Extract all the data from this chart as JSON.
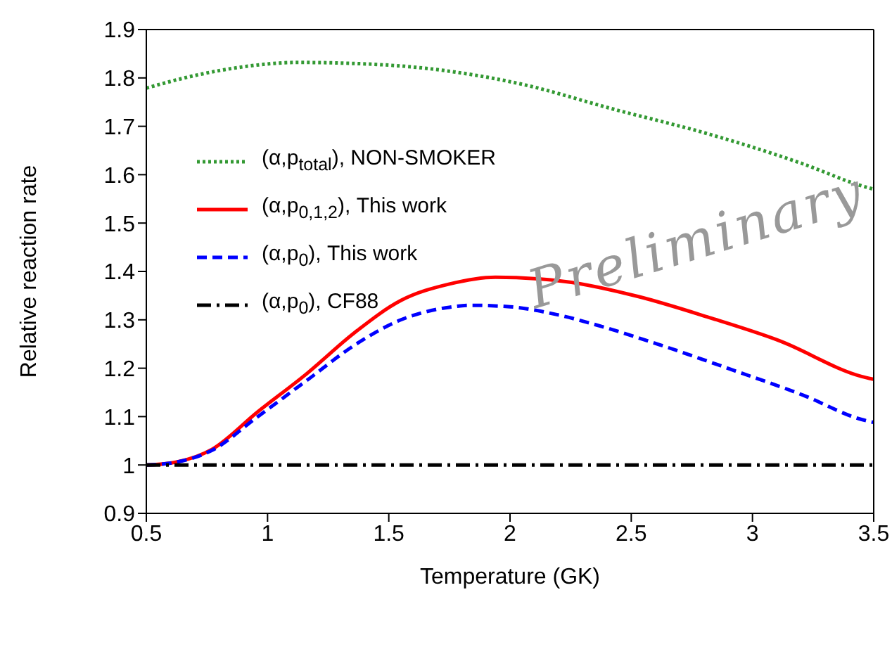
{
  "chart_data": {
    "type": "line",
    "xlabel": "Temperature (GK)",
    "ylabel": "Relative reaction rate",
    "xlim": [
      0.5,
      3.5
    ],
    "xticks": [
      0.5,
      1,
      1.5,
      2,
      2.5,
      3,
      3.5
    ],
    "ylim": [
      0.9,
      1.9
    ],
    "yticks": [
      0.9,
      1,
      1.1,
      1.2,
      1.3,
      1.4,
      1.5,
      1.6,
      1.7,
      1.8,
      1.9
    ],
    "legend": "top left",
    "annotations": [
      "Preliminary"
    ],
    "series": [
      {
        "name": "(α,p$_{total}$), NON-SMOKER",
        "color": "#339933",
        "line_style": "dotted",
        "x": [
          0.5,
          0.7,
          0.9,
          1.12,
          1.35,
          1.65,
          2.04,
          2.43,
          2.82,
          3.21,
          3.45,
          3.5
        ],
        "values": [
          1.779,
          1.805,
          1.823,
          1.832,
          1.83,
          1.82,
          1.788,
          1.735,
          1.684,
          1.622,
          1.577,
          1.57
        ]
      },
      {
        "name": "(α,p$_{0,1,2}$), This work",
        "color": "#ff0000",
        "line_style": "solid",
        "x": [
          0.5,
          0.6,
          0.77,
          0.96,
          1.16,
          1.36,
          1.55,
          1.75,
          1.94,
          2.23,
          2.53,
          2.82,
          3.11,
          3.45,
          3.5
        ],
        "values": [
          1,
          1.004,
          1.032,
          1.11,
          1.188,
          1.274,
          1.34,
          1.374,
          1.388,
          1.379,
          1.348,
          1.305,
          1.257,
          1.183,
          1.177
        ]
      },
      {
        "name": "(α,p$_{0}$), This work",
        "color": "#0000ff",
        "line_style": "dashed",
        "x": [
          0.5,
          0.6,
          0.77,
          0.96,
          1.16,
          1.36,
          1.55,
          1.75,
          1.84,
          2.0,
          2.2,
          2.4,
          2.62,
          2.92,
          3.21,
          3.45,
          3.5
        ],
        "values": [
          1,
          1.004,
          1.03,
          1.1,
          1.174,
          1.248,
          1.3,
          1.326,
          1.33,
          1.327,
          1.31,
          1.283,
          1.248,
          1.196,
          1.144,
          1.094,
          1.088
        ]
      },
      {
        "name": "(α,p$_{0}$), CF88",
        "color": "#000000",
        "line_style": "dashdot",
        "x": [
          0.5,
          3.5
        ],
        "values": [
          1,
          1
        ]
      }
    ]
  }
}
